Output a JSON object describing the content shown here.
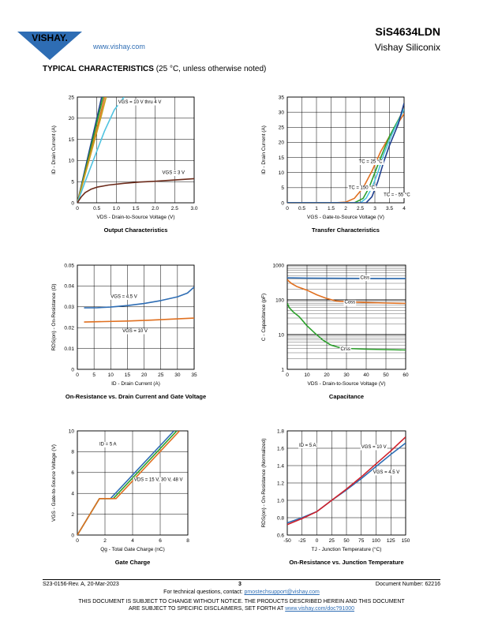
{
  "header": {
    "brand": "VISHAY.",
    "url": "www.vishay.com",
    "part_number": "SiS4634LDN",
    "company": "Vishay Siliconix",
    "brand_color": "#2e6db4"
  },
  "section": {
    "title": "TYPICAL CHARACTERISTICS",
    "note": "(25 °C, unless otherwise noted)"
  },
  "footer": {
    "revision": "S23-0156-Rev. A, 20-Mar-2023",
    "page": "3",
    "document_number": "Document Number: 62216",
    "contact_prefix": "For technical questions, contact: ",
    "contact_email": "pmostechsupport@vishay.com",
    "disclaimer_line1": "THIS DOCUMENT IS SUBJECT TO CHANGE WITHOUT NOTICE. THE PRODUCTS DESCRIBED HEREIN AND THIS DOCUMENT",
    "disclaimer_line2_prefix": "ARE SUBJECT TO SPECIFIC DISCLAIMERS, SET FORTH AT ",
    "disclaimer_link": "www.vishay.com/doc?91000"
  },
  "chart_data": [
    {
      "type": "line",
      "caption": "Output Characteristics",
      "xlabel": "VDS - Drain-to-Source Voltage (V)",
      "ylabel": "ID - Drain Current (A)",
      "xlim": [
        0,
        3
      ],
      "ylim": [
        0,
        25
      ],
      "xticks": [
        "0",
        "0.5",
        "1.0",
        "1.5",
        "2.0",
        "2.5",
        "3.0"
      ],
      "yticks": [
        "0",
        "5",
        "10",
        "15",
        "20",
        "25"
      ],
      "annotations": [
        {
          "text": "VGS = 10 V thru 4 V",
          "x": 1.05,
          "y": 23.5
        },
        {
          "text": "VGS = 3 V",
          "x": 2.18,
          "y": 6.8
        }
      ],
      "series": [
        {
          "color": "#1f3f8f",
          "points": [
            [
              0,
              0
            ],
            [
              0.25,
              10
            ],
            [
              0.5,
              20
            ],
            [
              0.625,
              25
            ]
          ]
        },
        {
          "color": "#2ca02c",
          "points": [
            [
              0,
              0
            ],
            [
              0.27,
              10
            ],
            [
              0.53,
              20
            ],
            [
              0.66,
              25
            ]
          ]
        },
        {
          "color": "#e07020",
          "points": [
            [
              0,
              0
            ],
            [
              0.29,
              10
            ],
            [
              0.57,
              20
            ],
            [
              0.7,
              25
            ]
          ]
        },
        {
          "color": "#c8a020",
          "points": [
            [
              0,
              0
            ],
            [
              0.3,
              10
            ],
            [
              0.6,
              20
            ],
            [
              0.74,
              25
            ]
          ]
        },
        {
          "color": "#4fc3e0",
          "points": [
            [
              0,
              0
            ],
            [
              0.2,
              5
            ],
            [
              0.45,
              11
            ],
            [
              0.7,
              17
            ],
            [
              0.95,
              22
            ],
            [
              1.2,
              25
            ]
          ]
        },
        {
          "color": "#6b2a1a",
          "points": [
            [
              0,
              0
            ],
            [
              0.1,
              1.4
            ],
            [
              0.2,
              2.4
            ],
            [
              0.35,
              3.2
            ],
            [
              0.5,
              3.7
            ],
            [
              0.8,
              4.2
            ],
            [
              1.2,
              4.6
            ],
            [
              1.6,
              4.9
            ],
            [
              2,
              5.1
            ],
            [
              2.5,
              5.4
            ],
            [
              3,
              5.7
            ]
          ]
        }
      ]
    },
    {
      "type": "line",
      "caption": "Transfer Characteristics",
      "xlabel": "VGS - Gate-to-Source Voltage (V)",
      "ylabel": "ID - Drain Current (A)",
      "xlim": [
        0,
        4
      ],
      "ylim": [
        0,
        35
      ],
      "xticks": [
        "0",
        "0.5",
        "1",
        "1.5",
        "2",
        "2.5",
        "3",
        "3.5",
        "4"
      ],
      "yticks": [
        "0",
        "5",
        "10",
        "15",
        "20",
        "25",
        "30",
        "35"
      ],
      "annotations": [
        {
          "text": "TC = 25 °C",
          "x": 2.45,
          "y": 13.2
        },
        {
          "text": "TC = 150 °C",
          "x": 2.1,
          "y": 4.6
        },
        {
          "text": "TC = - 55 °C",
          "x": 3.3,
          "y": 2.2
        }
      ],
      "series": [
        {
          "color": "#e07020",
          "points": [
            [
              0,
              0
            ],
            [
              1.6,
              0
            ],
            [
              2,
              0.2
            ],
            [
              2.3,
              1.5
            ],
            [
              2.6,
              5
            ],
            [
              2.9,
              10.5
            ],
            [
              3.2,
              17
            ],
            [
              3.5,
              22
            ],
            [
              4,
              29.5
            ]
          ]
        },
        {
          "color": "#2ca02c",
          "points": [
            [
              0,
              0
            ],
            [
              2.3,
              0
            ],
            [
              2.6,
              1.5
            ],
            [
              2.8,
              5
            ],
            [
              3,
              10
            ],
            [
              3.2,
              15
            ],
            [
              3.5,
              22
            ],
            [
              4,
              31
            ]
          ]
        },
        {
          "color": "#4fc3e0",
          "points": [
            [
              0,
              0
            ],
            [
              2.5,
              0
            ],
            [
              2.7,
              1.5
            ],
            [
              2.9,
              5
            ],
            [
              3.1,
              10
            ],
            [
              3.3,
              16
            ],
            [
              3.6,
              23
            ],
            [
              4,
              31
            ]
          ]
        },
        {
          "color": "#1f3f8f",
          "points": [
            [
              0,
              0
            ],
            [
              2.7,
              0
            ],
            [
              2.9,
              2
            ],
            [
              3.1,
              7
            ],
            [
              3.3,
              13.5
            ],
            [
              3.5,
              19
            ],
            [
              3.8,
              26
            ],
            [
              4,
              33
            ]
          ]
        }
      ]
    },
    {
      "type": "line",
      "caption": "On-Resistance vs. Drain Current and Gate Voltage",
      "xlabel": "ID - Drain Current (A)",
      "ylabel": "RDS(on) - On-Resistance (Ω)",
      "xlim": [
        0,
        35
      ],
      "ylim": [
        0,
        0.05
      ],
      "xticks": [
        "0",
        "5",
        "10",
        "15",
        "20",
        "25",
        "30",
        "35"
      ],
      "yticks": [
        "0",
        "0.01",
        "0.02",
        "0.03",
        "0.04",
        "0.05"
      ],
      "annotations": [
        {
          "text": "VGS = 4.5 V",
          "x": 10,
          "y": 0.0343
        },
        {
          "text": "VGS = 10 V",
          "x": 13.5,
          "y": 0.0178
        }
      ],
      "series": [
        {
          "color": "#2e6db4",
          "points": [
            [
              2,
              0.0295
            ],
            [
              6,
              0.0296
            ],
            [
              10,
              0.0299
            ],
            [
              15,
              0.0306
            ],
            [
              20,
              0.0316
            ],
            [
              25,
              0.033
            ],
            [
              30,
              0.0348
            ],
            [
              33,
              0.0366
            ],
            [
              35,
              0.0395
            ]
          ]
        },
        {
          "color": "#e07020",
          "points": [
            [
              2,
              0.0227
            ],
            [
              8,
              0.0229
            ],
            [
              15,
              0.0232
            ],
            [
              22,
              0.0236
            ],
            [
              28,
              0.0241
            ],
            [
              35,
              0.0246
            ]
          ]
        }
      ]
    },
    {
      "type": "line",
      "caption": "Capacitance",
      "xlabel": "VDS - Drain-to-Source Voltage (V)",
      "ylabel": "C - Capacitance (pF)",
      "xlim": [
        0,
        60
      ],
      "ylim": [
        1,
        1000
      ],
      "yscale": "log",
      "xticks": [
        "0",
        "10",
        "20",
        "30",
        "40",
        "50",
        "60"
      ],
      "yticks": [
        "1",
        "10",
        "100",
        "1000"
      ],
      "annotations": [
        {
          "text": "Ciss",
          "x": 37,
          "y": 400
        },
        {
          "text": "Coss",
          "x": 29,
          "y": 78
        },
        {
          "text": "Crss",
          "x": 27,
          "y": 3.5
        }
      ],
      "series": [
        {
          "color": "#2e6db4",
          "points": [
            [
              0,
              430
            ],
            [
              10,
              425
            ],
            [
              20,
              420
            ],
            [
              30,
              418
            ],
            [
              40,
              415
            ],
            [
              50,
              413
            ],
            [
              60,
              412
            ]
          ]
        },
        {
          "color": "#e07020",
          "points": [
            [
              0,
              380
            ],
            [
              2,
              300
            ],
            [
              5,
              240
            ],
            [
              10,
              190
            ],
            [
              15,
              140
            ],
            [
              20,
              110
            ],
            [
              25,
              92
            ],
            [
              30,
              88
            ],
            [
              40,
              84
            ],
            [
              50,
              81
            ],
            [
              60,
              79
            ]
          ]
        },
        {
          "color": "#2ca02c",
          "points": [
            [
              0,
              80
            ],
            [
              1,
              60
            ],
            [
              3,
              45
            ],
            [
              6,
              33
            ],
            [
              10,
              18
            ],
            [
              14,
              11
            ],
            [
              18,
              7
            ],
            [
              22,
              5
            ],
            [
              26,
              4.3
            ],
            [
              30,
              4
            ],
            [
              40,
              3.8
            ],
            [
              50,
              3.7
            ],
            [
              60,
              3.6
            ]
          ]
        }
      ]
    },
    {
      "type": "line",
      "caption": "Gate Charge",
      "xlabel": "Qg - Total Gate Charge (nC)",
      "ylabel": "VGS - Gate-to-Source Voltage (V)",
      "xlim": [
        0,
        8
      ],
      "ylim": [
        0,
        10
      ],
      "xticks": [
        "0",
        "2",
        "4",
        "6",
        "8"
      ],
      "yticks": [
        "0",
        "2",
        "4",
        "6",
        "8",
        "10"
      ],
      "annotations": [
        {
          "text": "ID = 5 A",
          "x": 1.6,
          "y": 8.6
        },
        {
          "text": "VDS = 15 V, 30 V, 48 V",
          "x": 4.1,
          "y": 5.2
        }
      ],
      "series": [
        {
          "color": "#2e6db4",
          "points": [
            [
              0,
              0
            ],
            [
              1.6,
              3.5
            ],
            [
              2.4,
              3.5
            ],
            [
              7,
              10
            ]
          ]
        },
        {
          "color": "#2ca02c",
          "points": [
            [
              0,
              0
            ],
            [
              1.6,
              3.5
            ],
            [
              2.6,
              3.5
            ],
            [
              7.2,
              10
            ]
          ]
        },
        {
          "color": "#e07020",
          "points": [
            [
              0,
              0
            ],
            [
              1.6,
              3.5
            ],
            [
              2.8,
              3.5
            ],
            [
              7.4,
              10
            ]
          ]
        }
      ]
    },
    {
      "type": "line",
      "caption": "On-Resistance vs. Junction Temperature",
      "xlabel": "TJ - Junction Temperature (°C)",
      "ylabel": "RDS(on) - On-Resistance (Normalized)",
      "xlim": [
        -50,
        150
      ],
      "ylim": [
        0.6,
        1.8
      ],
      "xticks": [
        "-50",
        "-25",
        "0",
        "25",
        "50",
        "75",
        "100",
        "125",
        "150"
      ],
      "yticks": [
        "0.6",
        "0.8",
        "1.0",
        "1.2",
        "1.4",
        "1.6",
        "1.8"
      ],
      "annotations": [
        {
          "text": "ID = 5 A",
          "x": -30,
          "y": 1.62
        },
        {
          "text": "VGS = 10 V",
          "x": 75,
          "y": 1.6
        },
        {
          "text": "VGS = 4.5 V",
          "x": 95,
          "y": 1.31
        }
      ],
      "series": [
        {
          "color": "#2e6db4",
          "points": [
            [
              -50,
              0.74
            ],
            [
              -25,
              0.8
            ],
            [
              0,
              0.87
            ],
            [
              25,
              1
            ],
            [
              50,
              1.12
            ],
            [
              75,
              1.25
            ],
            [
              100,
              1.39
            ],
            [
              125,
              1.53
            ],
            [
              150,
              1.66
            ]
          ]
        },
        {
          "color": "#d0202a",
          "points": [
            [
              -50,
              0.72
            ],
            [
              -25,
              0.79
            ],
            [
              0,
              0.87
            ],
            [
              25,
              1
            ],
            [
              50,
              1.13
            ],
            [
              75,
              1.27
            ],
            [
              100,
              1.42
            ],
            [
              125,
              1.57
            ],
            [
              150,
              1.73
            ]
          ]
        }
      ]
    }
  ]
}
